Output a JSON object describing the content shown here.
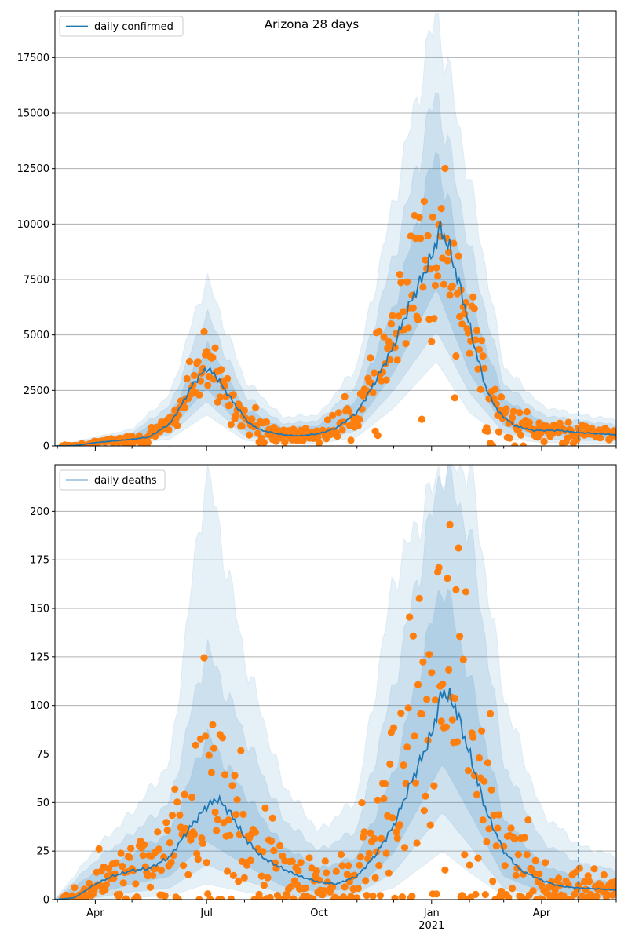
{
  "figure": {
    "title": "Arizona 28 days",
    "year_label": "2021",
    "colors": {
      "line": "#1f77b4",
      "points": "#ff7f0e",
      "band": "#1f77b4",
      "grid": "#b0b0b0",
      "axis": "#000000",
      "vline": "#1f77b4"
    }
  },
  "chart_data": [
    {
      "type": "line",
      "title": "Arizona 28 days",
      "legend": "daily confirmed",
      "legend_position": "top-left",
      "grid": "horizontal",
      "x_axis": {
        "type": "date",
        "range": [
          "2020-02-28",
          "2021-06-01"
        ],
        "ticks": [
          {
            "date": "2020-04-01",
            "label": "Apr"
          },
          {
            "date": "2020-07-01",
            "label": "Jul"
          },
          {
            "date": "2020-10-01",
            "label": "Oct"
          },
          {
            "date": "2021-01-01",
            "label": "Jan"
          },
          {
            "date": "2021-04-01",
            "label": "Apr"
          }
        ],
        "minor_ticks": [
          "2020-03-01",
          "2020-05-01",
          "2020-06-01",
          "2020-08-01",
          "2020-09-01",
          "2020-11-01",
          "2020-12-01",
          "2021-02-01",
          "2021-03-01",
          "2021-05-01",
          "2021-06-01"
        ]
      },
      "y_axis": {
        "range": [
          0,
          19600
        ],
        "ticks": [
          0,
          2500,
          5000,
          7500,
          10000,
          12500,
          15000,
          17500
        ]
      },
      "reference_line_date": "2021-05-01",
      "line": [
        [
          "2020-02-28",
          0
        ],
        [
          "2020-03-15",
          10
        ],
        [
          "2020-04-01",
          150
        ],
        [
          "2020-04-15",
          220
        ],
        [
          "2020-05-01",
          300
        ],
        [
          "2020-05-15",
          400
        ],
        [
          "2020-06-01",
          1000
        ],
        [
          "2020-06-10",
          1800
        ],
        [
          "2020-06-20",
          2800
        ],
        [
          "2020-07-01",
          3500
        ],
        [
          "2020-07-08",
          3200
        ],
        [
          "2020-07-15",
          2600
        ],
        [
          "2020-07-25",
          1800
        ],
        [
          "2020-08-05",
          1000
        ],
        [
          "2020-08-15",
          700
        ],
        [
          "2020-09-01",
          500
        ],
        [
          "2020-09-15",
          450
        ],
        [
          "2020-10-01",
          550
        ],
        [
          "2020-10-15",
          800
        ],
        [
          "2020-11-01",
          1500
        ],
        [
          "2020-11-15",
          2800
        ],
        [
          "2020-12-01",
          4500
        ],
        [
          "2020-12-15",
          6500
        ],
        [
          "2021-01-01",
          8500
        ],
        [
          "2021-01-08",
          9800
        ],
        [
          "2021-01-15",
          9000
        ],
        [
          "2021-01-25",
          7000
        ],
        [
          "2021-02-05",
          4500
        ],
        [
          "2021-02-15",
          2500
        ],
        [
          "2021-02-25",
          1500
        ],
        [
          "2021-03-10",
          900
        ],
        [
          "2021-03-25",
          700
        ],
        [
          "2021-04-15",
          700
        ],
        [
          "2021-05-01",
          600
        ],
        [
          "2021-06-01",
          500
        ]
      ],
      "band_inner": [
        [
          "2020-02-28",
          0,
          0
        ],
        [
          "2020-04-01",
          80,
          250
        ],
        [
          "2020-05-01",
          200,
          450
        ],
        [
          "2020-06-01",
          700,
          1400
        ],
        [
          "2020-07-01",
          2600,
          4600
        ],
        [
          "2020-08-01",
          700,
          1700
        ],
        [
          "2020-09-01",
          300,
          800
        ],
        [
          "2020-10-01",
          350,
          900
        ],
        [
          "2020-11-01",
          1000,
          2100
        ],
        [
          "2020-12-01",
          3300,
          6200
        ],
        [
          "2021-01-05",
          7100,
          13300
        ],
        [
          "2021-02-01",
          3300,
          6700
        ],
        [
          "2021-03-01",
          900,
          2100
        ],
        [
          "2021-04-01",
          450,
          1100
        ],
        [
          "2021-05-01",
          400,
          900
        ],
        [
          "2021-06-01",
          350,
          750
        ]
      ],
      "band_middle": [
        [
          "2020-02-28",
          0,
          0
        ],
        [
          "2020-04-01",
          50,
          320
        ],
        [
          "2020-05-01",
          150,
          600
        ],
        [
          "2020-06-01",
          500,
          1800
        ],
        [
          "2020-07-01",
          2000,
          6000
        ],
        [
          "2020-08-01",
          450,
          2300
        ],
        [
          "2020-09-01",
          180,
          1000
        ],
        [
          "2020-10-01",
          220,
          1150
        ],
        [
          "2020-11-01",
          700,
          2800
        ],
        [
          "2020-12-01",
          2500,
          8500
        ],
        [
          "2021-01-05",
          5200,
          16000
        ],
        [
          "2021-02-01",
          2400,
          9000
        ],
        [
          "2021-03-01",
          600,
          2800
        ],
        [
          "2021-04-01",
          300,
          1400
        ],
        [
          "2021-05-01",
          250,
          1150
        ],
        [
          "2021-06-01",
          220,
          950
        ]
      ],
      "band_outer": [
        [
          "2020-02-28",
          0,
          0
        ],
        [
          "2020-04-01",
          30,
          400
        ],
        [
          "2020-05-01",
          100,
          750
        ],
        [
          "2020-06-01",
          300,
          2300
        ],
        [
          "2020-07-01",
          1400,
          7600
        ],
        [
          "2020-08-01",
          250,
          3000
        ],
        [
          "2020-09-01",
          100,
          1300
        ],
        [
          "2020-10-01",
          100,
          1400
        ],
        [
          "2020-11-01",
          400,
          3600
        ],
        [
          "2020-12-01",
          1700,
          11000
        ],
        [
          "2021-01-05",
          3800,
          19600
        ],
        [
          "2021-02-01",
          1500,
          12000
        ],
        [
          "2021-03-01",
          350,
          3600
        ],
        [
          "2021-04-01",
          150,
          1800
        ],
        [
          "2021-05-01",
          120,
          1400
        ],
        [
          "2021-06-01",
          100,
          1200
        ]
      ],
      "scatter_series": "points"
    },
    {
      "type": "line",
      "legend": "daily deaths",
      "legend_position": "top-left",
      "grid": "horizontal",
      "x_axis": {
        "type": "date",
        "range": [
          "2020-02-28",
          "2021-06-01"
        ],
        "ticks": [
          {
            "date": "2020-04-01",
            "label": "Apr"
          },
          {
            "date": "2020-07-01",
            "label": "Jul"
          },
          {
            "date": "2020-10-01",
            "label": "Oct"
          },
          {
            "date": "2021-01-01",
            "label": "Jan"
          },
          {
            "date": "2021-04-01",
            "label": "Apr"
          }
        ],
        "minor_ticks": [
          "2020-03-01",
          "2020-05-01",
          "2020-06-01",
          "2020-08-01",
          "2020-09-01",
          "2020-11-01",
          "2020-12-01",
          "2021-02-01",
          "2021-03-01",
          "2021-05-01",
          "2021-06-01"
        ]
      },
      "x_sublabel": "2021",
      "y_axis": {
        "range": [
          0,
          224
        ],
        "ticks": [
          0,
          25,
          50,
          75,
          100,
          125,
          150,
          175,
          200
        ]
      },
      "reference_line_date": "2021-05-01",
      "line": [
        [
          "2020-02-28",
          0
        ],
        [
          "2020-03-15",
          1
        ],
        [
          "2020-04-01",
          8
        ],
        [
          "2020-04-15",
          12
        ],
        [
          "2020-05-01",
          15
        ],
        [
          "2020-05-15",
          16
        ],
        [
          "2020-06-01",
          22
        ],
        [
          "2020-06-15",
          35
        ],
        [
          "2020-07-01",
          48
        ],
        [
          "2020-07-10",
          52
        ],
        [
          "2020-07-20",
          45
        ],
        [
          "2020-08-01",
          32
        ],
        [
          "2020-08-15",
          22
        ],
        [
          "2020-09-01",
          16
        ],
        [
          "2020-09-15",
          12
        ],
        [
          "2020-10-01",
          9
        ],
        [
          "2020-10-15",
          8
        ],
        [
          "2020-11-01",
          12
        ],
        [
          "2020-11-15",
          22
        ],
        [
          "2020-12-01",
          38
        ],
        [
          "2020-12-15",
          60
        ],
        [
          "2021-01-01",
          85
        ],
        [
          "2021-01-10",
          108
        ],
        [
          "2021-01-20",
          100
        ],
        [
          "2021-02-01",
          75
        ],
        [
          "2021-02-15",
          45
        ],
        [
          "2021-03-01",
          25
        ],
        [
          "2021-03-15",
          15
        ],
        [
          "2021-04-01",
          10
        ],
        [
          "2021-04-15",
          7
        ],
        [
          "2021-05-01",
          6
        ],
        [
          "2021-06-01",
          5
        ]
      ],
      "band_inner": [
        [
          "2020-02-28",
          0,
          0
        ],
        [
          "2020-04-01",
          3,
          14
        ],
        [
          "2020-05-01",
          8,
          24
        ],
        [
          "2020-06-01",
          12,
          34
        ],
        [
          "2020-07-01",
          30,
          85
        ],
        [
          "2020-08-01",
          18,
          55
        ],
        [
          "2020-09-01",
          7,
          28
        ],
        [
          "2020-10-01",
          4,
          16
        ],
        [
          "2020-11-01",
          6,
          22
        ],
        [
          "2020-12-01",
          24,
          65
        ],
        [
          "2021-01-10",
          70,
          165
        ],
        [
          "2021-02-01",
          45,
          115
        ],
        [
          "2021-03-01",
          12,
          42
        ],
        [
          "2021-04-01",
          4,
          18
        ],
        [
          "2021-05-01",
          2,
          11
        ],
        [
          "2021-06-01",
          2,
          9
        ]
      ],
      "band_middle": [
        [
          "2020-02-28",
          0,
          0
        ],
        [
          "2020-04-01",
          1,
          20
        ],
        [
          "2020-05-01",
          4,
          34
        ],
        [
          "2020-06-01",
          6,
          50
        ],
        [
          "2020-07-01",
          18,
          130
        ],
        [
          "2020-08-01",
          10,
          85
        ],
        [
          "2020-09-01",
          3,
          42
        ],
        [
          "2020-10-01",
          1,
          25
        ],
        [
          "2020-11-01",
          3,
          36
        ],
        [
          "2020-12-01",
          14,
          110
        ],
        [
          "2021-01-10",
          45,
          224
        ],
        [
          "2021-02-01",
          28,
          190
        ],
        [
          "2021-03-01",
          6,
          70
        ],
        [
          "2021-04-01",
          2,
          30
        ],
        [
          "2021-05-01",
          1,
          19
        ],
        [
          "2021-06-01",
          1,
          15
        ]
      ],
      "band_outer": [
        [
          "2020-02-28",
          0,
          0
        ],
        [
          "2020-04-01",
          0,
          26
        ],
        [
          "2020-05-01",
          1,
          45
        ],
        [
          "2020-06-01",
          2,
          70
        ],
        [
          "2020-07-01",
          8,
          224
        ],
        [
          "2020-08-01",
          4,
          125
        ],
        [
          "2020-09-01",
          1,
          60
        ],
        [
          "2020-10-01",
          0,
          35
        ],
        [
          "2020-11-01",
          1,
          52
        ],
        [
          "2020-12-01",
          6,
          165
        ],
        [
          "2021-01-10",
          25,
          224
        ],
        [
          "2021-02-01",
          14,
          224
        ],
        [
          "2021-03-01",
          2,
          105
        ],
        [
          "2021-04-01",
          0,
          45
        ],
        [
          "2021-05-01",
          0,
          28
        ],
        [
          "2021-06-01",
          0,
          22
        ]
      ],
      "scatter_series": "points"
    }
  ]
}
